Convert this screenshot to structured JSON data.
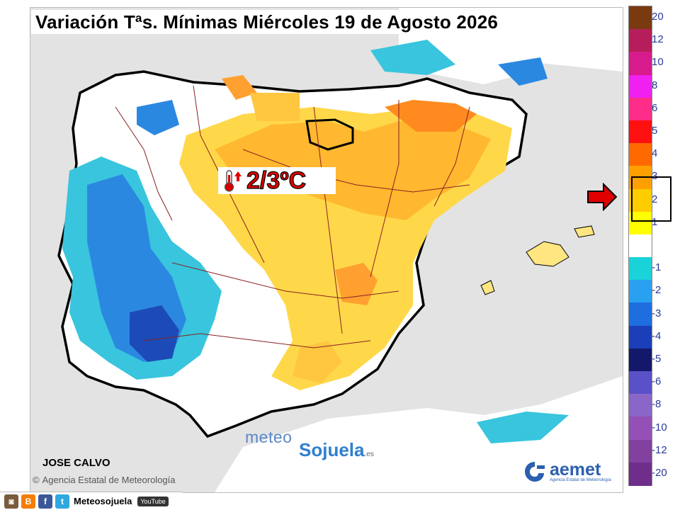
{
  "title": "Variación Tªs. Mínimas Miércoles 19 de Agosto 2026",
  "callout": {
    "icon": "thermometer-up-icon",
    "value": "2/3ºC"
  },
  "legend": {
    "steps": [
      {
        "label": "20",
        "color": "#7a3a10"
      },
      {
        "label": "12",
        "color": "#b51e5a"
      },
      {
        "label": "10",
        "color": "#d81b8c"
      },
      {
        "label": "8",
        "color": "#f020f0"
      },
      {
        "label": "6",
        "color": "#ff2d8a"
      },
      {
        "label": "5",
        "color": "#ff1010"
      },
      {
        "label": "4",
        "color": "#ff6a00"
      },
      {
        "label": "3",
        "color": "#ffa000"
      },
      {
        "label": "2",
        "color": "#ffcc00"
      },
      {
        "label": "1",
        "color": "#ffff00"
      },
      {
        "label": "",
        "color": "#ffffff"
      },
      {
        "label": "-1",
        "color": "#1ad3d9"
      },
      {
        "label": "-2",
        "color": "#2aa0f0"
      },
      {
        "label": "-3",
        "color": "#1e6ee0"
      },
      {
        "label": "-4",
        "color": "#1a3fb8"
      },
      {
        "label": "-5",
        "color": "#14186a"
      },
      {
        "label": "-6",
        "color": "#5a50c8"
      },
      {
        "label": "-8",
        "color": "#8a66c8"
      },
      {
        "label": "-10",
        "color": "#9550b8"
      },
      {
        "label": "-12",
        "color": "#82419e"
      },
      {
        "label": "-20",
        "color": "#6e2e8a"
      }
    ],
    "highlighted": [
      "3",
      "2"
    ]
  },
  "author": "JOSE CALVO",
  "agency_credit": "Agencia Estatal de Meteorología",
  "agency_copyright_symbol": "©",
  "watermark": {
    "line1": "meteo",
    "line2": "Sojuela",
    "suffix": ".es"
  },
  "aemet": {
    "word": "aemet",
    "subtitle": "Agencia Estatal de Meteorología"
  },
  "social": {
    "icons": [
      "instagram-icon",
      "blogger-icon",
      "facebook-icon",
      "twitter-icon"
    ],
    "handle": "Meteosojuela",
    "youtube": "YouTube"
  }
}
